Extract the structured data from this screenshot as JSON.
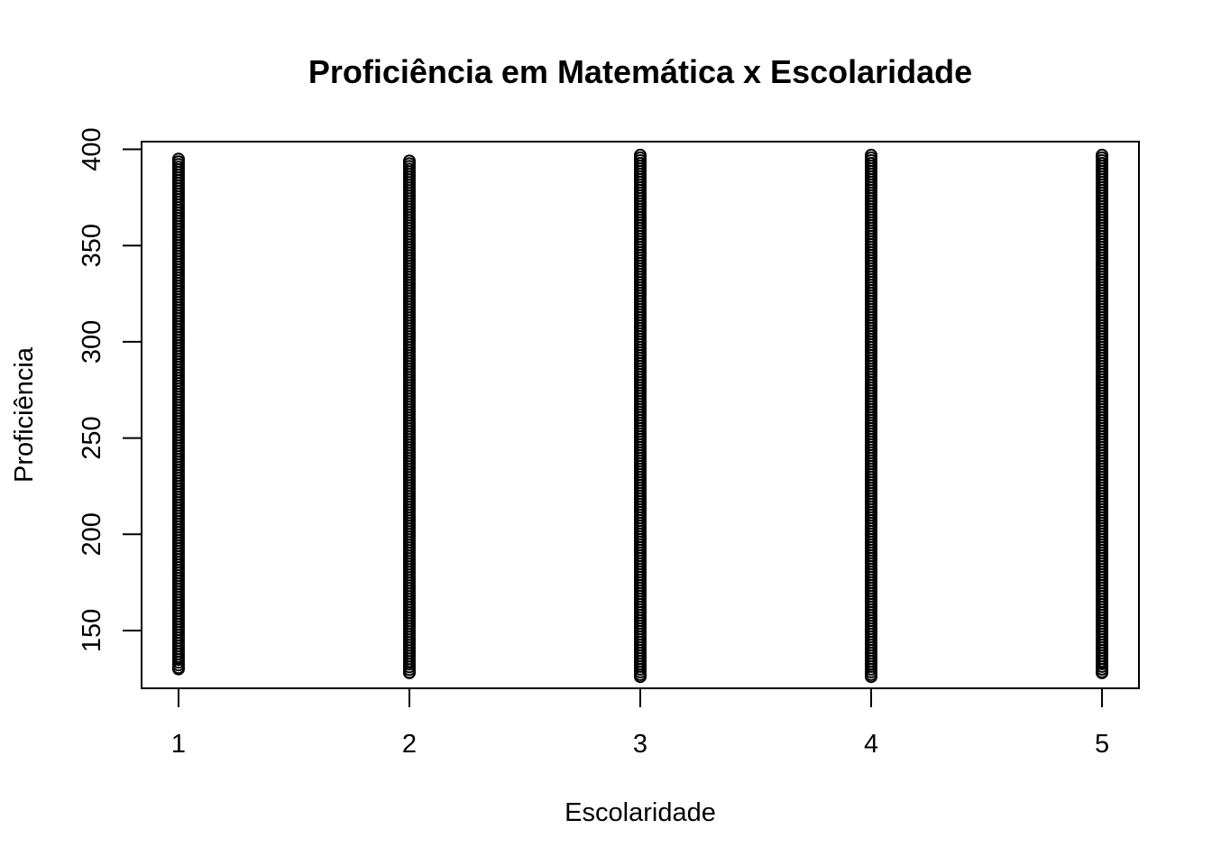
{
  "chart_data": {
    "type": "scatter",
    "title": "Proficiência em Matemática x Escolaridade",
    "xlabel": "Escolaridade",
    "ylabel": "Proficiência",
    "xlim": [
      0.84,
      5.16
    ],
    "ylim": [
      120,
      404
    ],
    "xticks": [
      1,
      2,
      3,
      4,
      5
    ],
    "yticks": [
      150,
      200,
      250,
      300,
      350,
      400
    ],
    "grid": false,
    "legend": "none",
    "marker": "open-circle",
    "color": "#000000",
    "series": [
      {
        "values": [
          {
            "x": 1,
            "ymin": 130,
            "ymax": 395
          },
          {
            "x": 2,
            "ymin": 128,
            "ymax": 394
          },
          {
            "x": 3,
            "ymin": 126,
            "ymax": 397
          },
          {
            "x": 4,
            "ymin": 126,
            "ymax": 397
          },
          {
            "x": 5,
            "ymin": 128,
            "ymax": 397
          }
        ]
      }
    ]
  }
}
